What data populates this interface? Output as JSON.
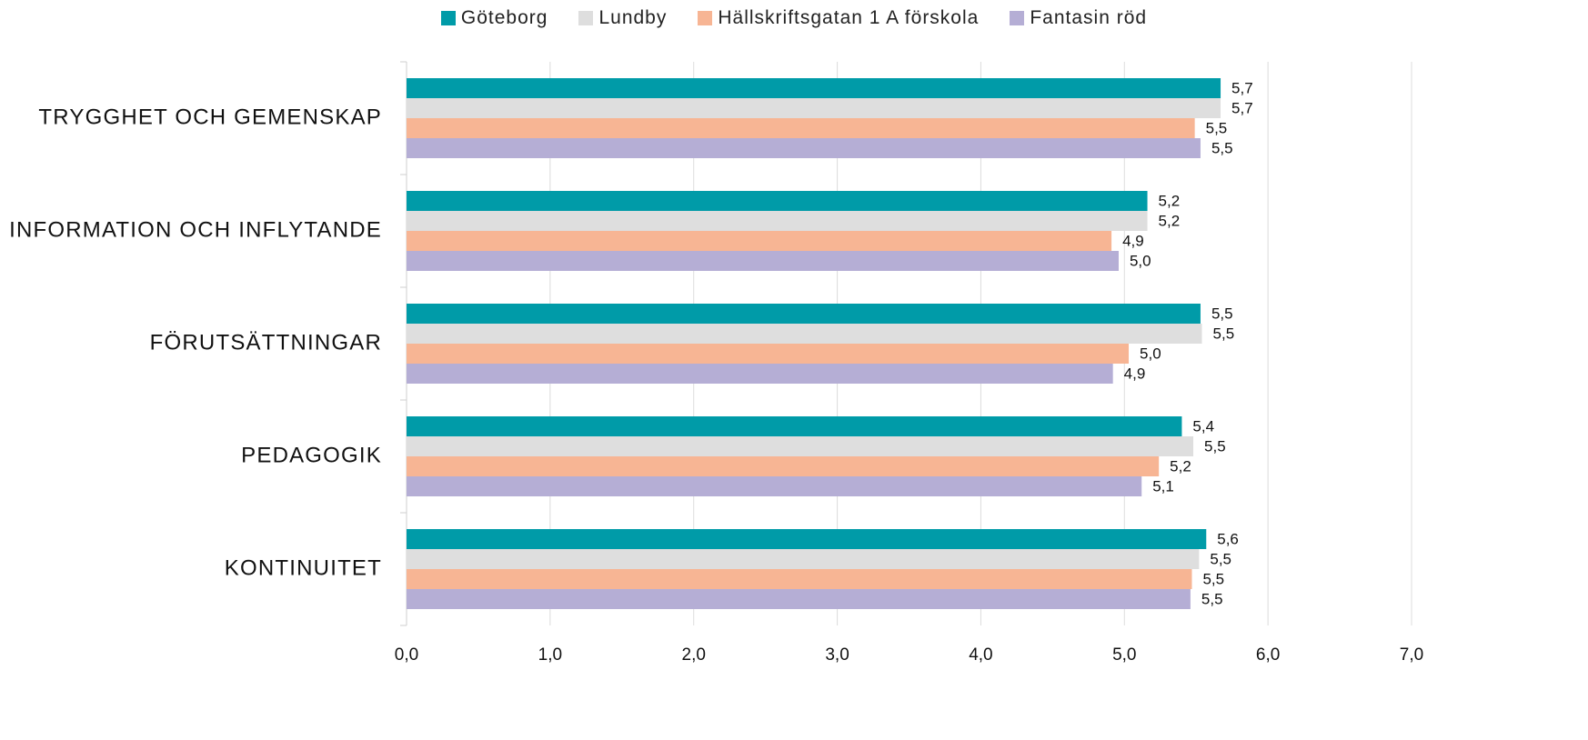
{
  "chart_data": {
    "type": "bar",
    "orientation": "horizontal",
    "categories": [
      "TRYGGHET OCH GEMENSKAP",
      "INFORMATION OCH INFLYTANDE",
      "FÖRUTSÄTTNINGAR",
      "PEDAGOGIK",
      "KONTINUITET"
    ],
    "series": [
      {
        "name": "Göteborg",
        "color": "#009ba8",
        "values": [
          5.67,
          5.16,
          5.53,
          5.4,
          5.57
        ],
        "value_labels": [
          "5,7",
          "5,2",
          "5,5",
          "5,4",
          "5,6"
        ]
      },
      {
        "name": "Lundby",
        "color": "#dedede",
        "values": [
          5.67,
          5.16,
          5.54,
          5.48,
          5.52
        ],
        "value_labels": [
          "5,7",
          "5,2",
          "5,5",
          "5,5",
          "5,5"
        ]
      },
      {
        "name": "Hällskriftsgatan 1 A förskola",
        "color": "#f7b594",
        "values": [
          5.49,
          4.91,
          5.03,
          5.24,
          5.47
        ],
        "value_labels": [
          "5,5",
          "4,9",
          "5,0",
          "5,2",
          "5,5"
        ]
      },
      {
        "name": "Fantasin röd",
        "color": "#b5aed5",
        "values": [
          5.53,
          4.96,
          4.92,
          5.12,
          5.46
        ],
        "value_labels": [
          "5,5",
          "5,0",
          "4,9",
          "5,1",
          "5,5"
        ]
      }
    ],
    "xlim": [
      0,
      7
    ],
    "xticks": [
      {
        "value": 0,
        "label": "0,0"
      },
      {
        "value": 1,
        "label": "1,0"
      },
      {
        "value": 2,
        "label": "2,0"
      },
      {
        "value": 3,
        "label": "3,0"
      },
      {
        "value": 4,
        "label": "4,0"
      },
      {
        "value": 5,
        "label": "5,0"
      },
      {
        "value": 6,
        "label": "6,0"
      },
      {
        "value": 7,
        "label": "7,0"
      }
    ],
    "grid": true,
    "legend": "top"
  }
}
